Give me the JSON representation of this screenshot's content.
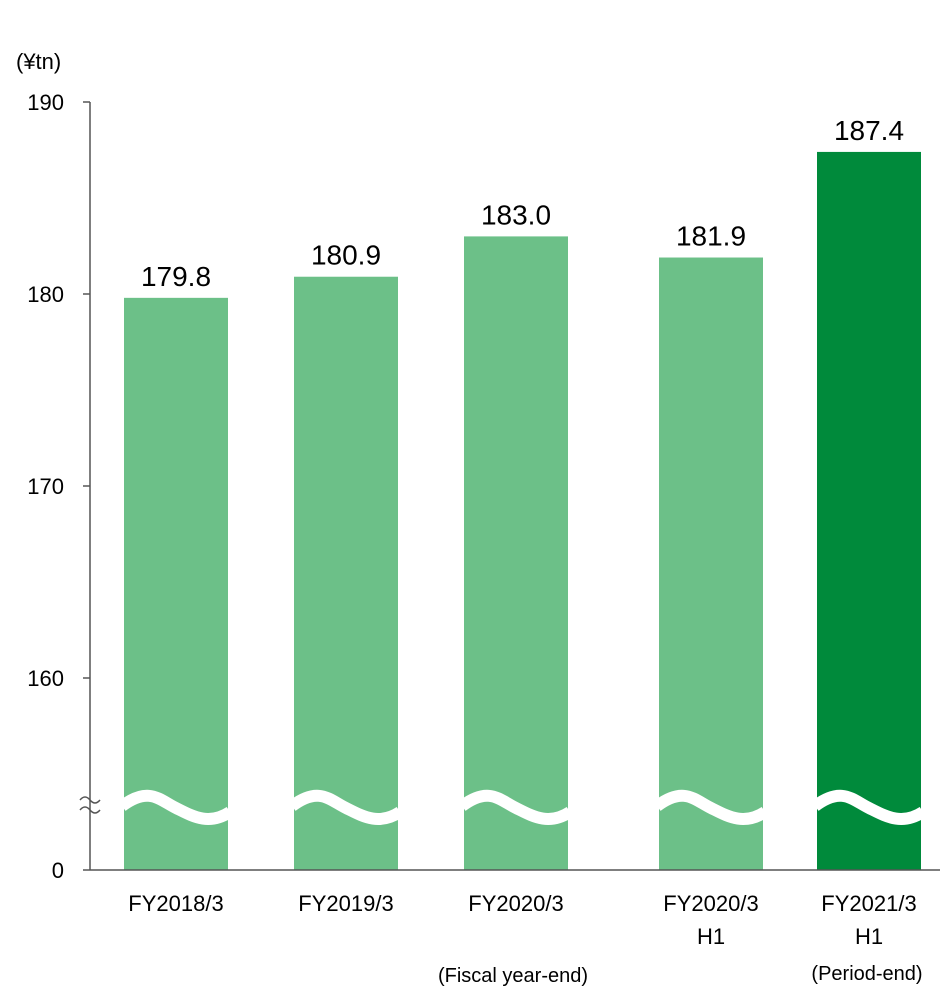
{
  "chart_data": {
    "type": "bar",
    "unit_label": "(¥tn)",
    "ylim": [
      0,
      190
    ],
    "axis_break": "between 0 and 160",
    "y_ticks": [
      "0",
      "160",
      "170",
      "180",
      "190"
    ],
    "grid": false,
    "categories": [
      [
        "FY2018/3"
      ],
      [
        "FY2019/3"
      ],
      [
        "FY2020/3"
      ],
      [
        "FY2020/3",
        "H1"
      ],
      [
        "FY2021/3",
        "H1"
      ]
    ],
    "values": [
      179.8,
      180.9,
      183.0,
      181.9,
      187.4
    ],
    "value_labels": [
      "179.8",
      "180.9",
      "183.0",
      "181.9",
      "187.4"
    ],
    "group_notes": [
      "(Fiscal year-end)",
      "(Period-end)"
    ],
    "colors": {
      "bar": "#6CC088",
      "bar_highlight": "#008A3B",
      "axis": "#555555"
    }
  }
}
